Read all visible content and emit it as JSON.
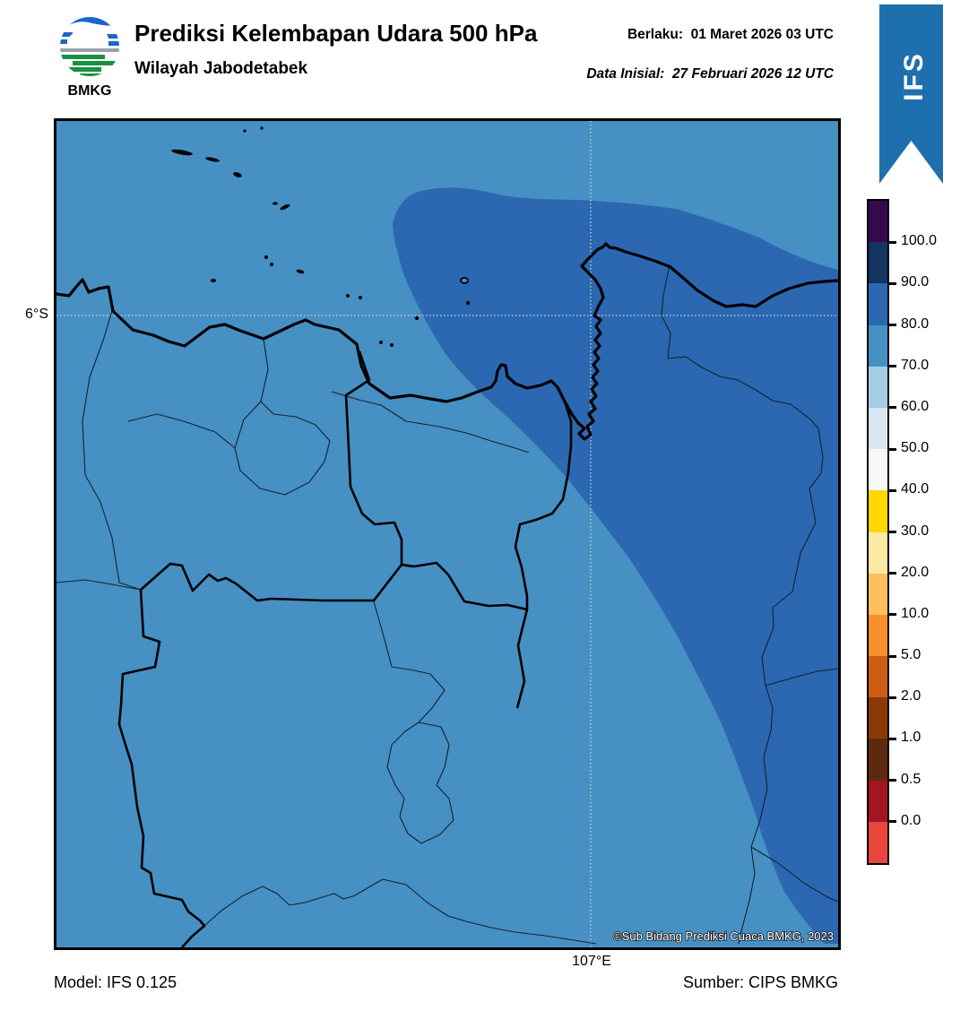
{
  "header": {
    "title": "Prediksi Kelembapan Udara 500 hPa",
    "subtitle": "Wilayah Jabodetabek",
    "valid_label": "Berlaku:",
    "valid_value": "01 Maret 2026 03 UTC",
    "initial_label": "Data Inisial:",
    "initial_value": "27 Februari 2026 12 UTC",
    "logo_text": "BMKG",
    "ribbon_text": "IFS",
    "ribbon_color": "#1E6FAD"
  },
  "map": {
    "lat_label": "6°S",
    "lon_label": "107°E",
    "copyright": "©Sub Bidang Prediksi Cuaca BMKG, 2023",
    "base_color": "#4690C3",
    "high_humidity_color": "#2B68B1",
    "gridline_color": "#CBD8E0"
  },
  "colorbar": {
    "segments": [
      "#36094E",
      "#143461",
      "#2B68B1",
      "#4690C3",
      "#A6CCE3",
      "#D8E7F2",
      "#F7F7F6",
      "#FFD800",
      "#FCE9A4",
      "#FCC05E",
      "#F78F2D",
      "#CB5E12",
      "#8C390A",
      "#5D2A10",
      "#A31523",
      "#E8463C"
    ],
    "ticks": [
      "100.0",
      "90.0",
      "80.0",
      "70.0",
      "60.0",
      "50.0",
      "40.0",
      "30.0",
      "20.0",
      "10.0",
      "5.0",
      "2.0",
      "1.0",
      "0.5",
      "0.0"
    ]
  },
  "footer": {
    "model": "Model: IFS 0.125",
    "source": "Sumber: CIPS BMKG"
  }
}
